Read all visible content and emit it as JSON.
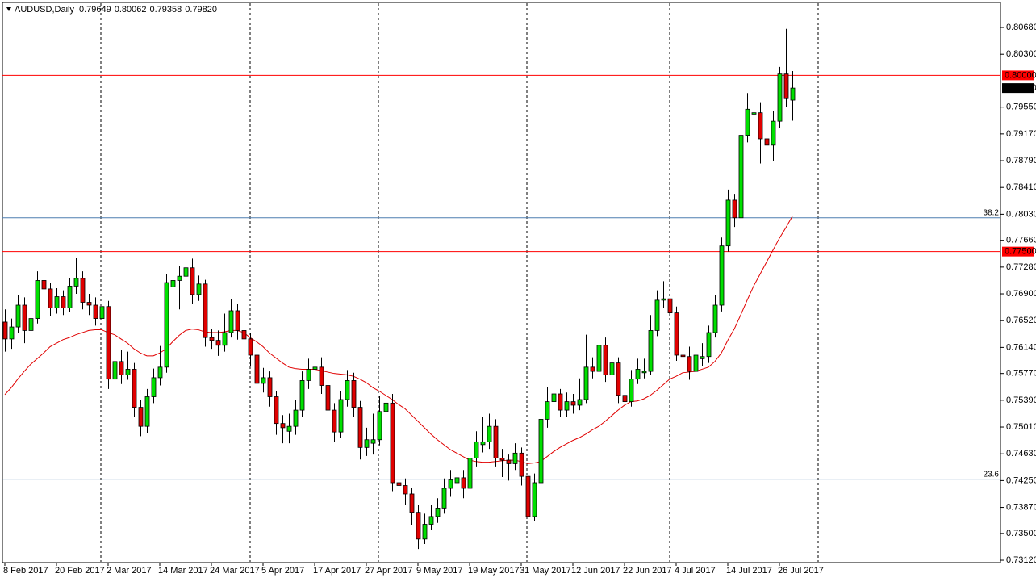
{
  "chart_data": {
    "type": "candlestick",
    "symbol": "AUDUSD,Daily",
    "info_labels": [
      "0.79649",
      "0.80062",
      "0.79358",
      "0.79820"
    ],
    "categories": [
      "8 Feb 2017",
      null,
      null,
      null,
      null,
      null,
      null,
      null,
      "20 Feb 2017",
      null,
      null,
      null,
      null,
      null,
      null,
      null,
      "2 Mar 2017",
      null,
      null,
      null,
      null,
      null,
      null,
      null,
      "14 Mar 2017",
      null,
      null,
      null,
      null,
      null,
      null,
      null,
      "24 Mar 2017",
      null,
      null,
      null,
      null,
      null,
      null,
      null,
      "5 Apr 2017",
      null,
      null,
      null,
      null,
      null,
      null,
      null,
      "17 Apr 2017",
      null,
      null,
      null,
      null,
      null,
      null,
      null,
      "27 Apr 2017",
      null,
      null,
      null,
      null,
      null,
      null,
      null,
      "9 May 2017",
      null,
      null,
      null,
      null,
      null,
      null,
      null,
      "19 May 2017",
      null,
      null,
      null,
      null,
      null,
      null,
      null,
      "31 May 2017",
      null,
      null,
      null,
      null,
      null,
      null,
      null,
      "12 Jun 2017",
      null,
      null,
      null,
      null,
      null,
      null,
      null,
      "22 Jun 2017",
      null,
      null,
      null,
      null,
      null,
      null,
      null,
      "4 Jul 2017",
      null,
      null,
      null,
      null,
      null,
      null,
      null,
      "14 Jul 2017",
      null,
      null,
      null,
      null,
      null,
      null,
      null,
      "26 Jul 2017",
      null,
      null
    ],
    "ohlc": [
      [
        0.765,
        0.7668,
        0.7608,
        0.7626
      ],
      [
        0.7626,
        0.7655,
        0.7612,
        0.7643
      ],
      [
        0.7643,
        0.7688,
        0.7635,
        0.7674
      ],
      [
        0.7674,
        0.7685,
        0.762,
        0.7638
      ],
      [
        0.7638,
        0.7668,
        0.763,
        0.7655
      ],
      [
        0.7655,
        0.7722,
        0.7648,
        0.7709
      ],
      [
        0.7709,
        0.7731,
        0.7685,
        0.7697
      ],
      [
        0.7697,
        0.7705,
        0.7658,
        0.767
      ],
      [
        0.767,
        0.7698,
        0.7662,
        0.7686
      ],
      [
        0.7686,
        0.7695,
        0.766,
        0.767
      ],
      [
        0.767,
        0.7712,
        0.7664,
        0.7701
      ],
      [
        0.7701,
        0.7741,
        0.769,
        0.7712
      ],
      [
        0.7712,
        0.7722,
        0.7668,
        0.7678
      ],
      [
        0.7678,
        0.769,
        0.766,
        0.7674
      ],
      [
        0.7674,
        0.7685,
        0.7645,
        0.7655
      ],
      [
        0.7655,
        0.769,
        0.7648,
        0.7672
      ],
      [
        0.7672,
        0.768,
        0.7555,
        0.7569
      ],
      [
        0.7569,
        0.7612,
        0.7545,
        0.7594
      ],
      [
        0.7594,
        0.761,
        0.7562,
        0.7575
      ],
      [
        0.7575,
        0.7608,
        0.7568,
        0.7583
      ],
      [
        0.7583,
        0.7592,
        0.7515,
        0.7529
      ],
      [
        0.7529,
        0.754,
        0.7488,
        0.7502
      ],
      [
        0.7502,
        0.7555,
        0.7492,
        0.7544
      ],
      [
        0.7544,
        0.7584,
        0.7535,
        0.7571
      ],
      [
        0.7571,
        0.7616,
        0.756,
        0.7586
      ],
      [
        0.7586,
        0.7718,
        0.7578,
        0.7706
      ],
      [
        0.77,
        0.7722,
        0.769,
        0.7709
      ],
      [
        0.7709,
        0.773,
        0.7668,
        0.7715
      ],
      [
        0.7715,
        0.7748,
        0.77,
        0.7727
      ],
      [
        0.7727,
        0.774,
        0.7676,
        0.7689
      ],
      [
        0.7689,
        0.7716,
        0.768,
        0.7704
      ],
      [
        0.7704,
        0.771,
        0.7615,
        0.7628
      ],
      [
        0.7628,
        0.764,
        0.7612,
        0.7624
      ],
      [
        0.7624,
        0.7638,
        0.7602,
        0.7617
      ],
      [
        0.7617,
        0.7662,
        0.7608,
        0.7635
      ],
      [
        0.7635,
        0.7682,
        0.7628,
        0.7666
      ],
      [
        0.7666,
        0.7676,
        0.7625,
        0.7638
      ],
      [
        0.7638,
        0.765,
        0.7612,
        0.7626
      ],
      [
        0.7626,
        0.7635,
        0.7588,
        0.7603
      ],
      [
        0.7603,
        0.7612,
        0.7548,
        0.7563
      ],
      [
        0.7563,
        0.7585,
        0.755,
        0.7571
      ],
      [
        0.7571,
        0.758,
        0.753,
        0.7544
      ],
      [
        0.7544,
        0.7552,
        0.749,
        0.7506
      ],
      [
        0.7506,
        0.7518,
        0.7478,
        0.75
      ],
      [
        0.7495,
        0.752,
        0.7478,
        0.7502
      ],
      [
        0.7502,
        0.754,
        0.749,
        0.7525
      ],
      [
        0.7525,
        0.758,
        0.7515,
        0.7567
      ],
      [
        0.7567,
        0.7598,
        0.7555,
        0.7583
      ],
      [
        0.7583,
        0.7612,
        0.757,
        0.7586
      ],
      [
        0.7586,
        0.76,
        0.7548,
        0.756
      ],
      [
        0.756,
        0.757,
        0.751,
        0.7525
      ],
      [
        0.7525,
        0.7535,
        0.748,
        0.7494
      ],
      [
        0.7494,
        0.7552,
        0.7485,
        0.754
      ],
      [
        0.754,
        0.7582,
        0.753,
        0.7567
      ],
      [
        0.7567,
        0.7578,
        0.7515,
        0.7529
      ],
      [
        0.7529,
        0.7538,
        0.7455,
        0.7472
      ],
      [
        0.7472,
        0.75,
        0.746,
        0.7483
      ],
      [
        0.7478,
        0.752,
        0.7462,
        0.7483
      ],
      [
        0.7483,
        0.7545,
        0.7475,
        0.7523
      ],
      [
        0.7523,
        0.756,
        0.7512,
        0.7535
      ],
      [
        0.7535,
        0.7548,
        0.741,
        0.7422
      ],
      [
        0.7422,
        0.7435,
        0.7395,
        0.7418
      ],
      [
        0.7418,
        0.7428,
        0.739,
        0.7406
      ],
      [
        0.7406,
        0.7415,
        0.7362,
        0.738
      ],
      [
        0.738,
        0.739,
        0.7328,
        0.7342
      ],
      [
        0.7342,
        0.7378,
        0.7335,
        0.7363
      ],
      [
        0.7363,
        0.739,
        0.7355,
        0.7374
      ],
      [
        0.7374,
        0.74,
        0.7365,
        0.7386
      ],
      [
        0.7386,
        0.7428,
        0.7378,
        0.7414
      ],
      [
        0.7414,
        0.744,
        0.7402,
        0.7426
      ],
      [
        0.7422,
        0.744,
        0.741,
        0.7429
      ],
      [
        0.7429,
        0.744,
        0.74,
        0.7414
      ],
      [
        0.7414,
        0.7475,
        0.7405,
        0.7457
      ],
      [
        0.7457,
        0.7495,
        0.7445,
        0.748
      ],
      [
        0.7476,
        0.7515,
        0.7465,
        0.748
      ],
      [
        0.748,
        0.752,
        0.747,
        0.7502
      ],
      [
        0.7502,
        0.7512,
        0.7445,
        0.7457
      ],
      [
        0.7457,
        0.747,
        0.743,
        0.7454
      ],
      [
        0.7454,
        0.7462,
        0.7425,
        0.7449
      ],
      [
        0.7449,
        0.7478,
        0.744,
        0.7464
      ],
      [
        0.7464,
        0.7472,
        0.7418,
        0.7431
      ],
      [
        0.7431,
        0.744,
        0.7365,
        0.7374
      ],
      [
        0.7374,
        0.7435,
        0.7368,
        0.7422
      ],
      [
        0.7422,
        0.7525,
        0.7415,
        0.7512
      ],
      [
        0.7512,
        0.7558,
        0.75,
        0.7537
      ],
      [
        0.7537,
        0.7565,
        0.7525,
        0.7548
      ],
      [
        0.7548,
        0.7555,
        0.7515,
        0.7525
      ],
      [
        0.7525,
        0.755,
        0.7515,
        0.7537
      ],
      [
        0.7537,
        0.7548,
        0.752,
        0.7532
      ],
      [
        0.7532,
        0.757,
        0.7525,
        0.754
      ],
      [
        0.754,
        0.7632,
        0.7535,
        0.7586
      ],
      [
        0.7586,
        0.76,
        0.757,
        0.758
      ],
      [
        0.758,
        0.7635,
        0.7572,
        0.7617
      ],
      [
        0.7617,
        0.7628,
        0.7565,
        0.7575
      ],
      [
        0.7575,
        0.7618,
        0.7568,
        0.7592
      ],
      [
        0.7592,
        0.76,
        0.7535,
        0.7546
      ],
      [
        0.7546,
        0.756,
        0.7522,
        0.7537
      ],
      [
        0.7537,
        0.7582,
        0.753,
        0.7569
      ],
      [
        0.7569,
        0.7598,
        0.7562,
        0.7583
      ],
      [
        0.7578,
        0.7598,
        0.757,
        0.758
      ],
      [
        0.758,
        0.766,
        0.7575,
        0.7638
      ],
      [
        0.7638,
        0.7695,
        0.763,
        0.7681
      ],
      [
        0.7681,
        0.7708,
        0.767,
        0.7683
      ],
      [
        0.7683,
        0.7698,
        0.765,
        0.7663
      ],
      [
        0.7663,
        0.7672,
        0.7595,
        0.7603
      ],
      [
        0.7603,
        0.7625,
        0.7585,
        0.7601
      ],
      [
        0.7601,
        0.7615,
        0.7568,
        0.758
      ],
      [
        0.758,
        0.7625,
        0.7572,
        0.7603
      ],
      [
        0.7598,
        0.762,
        0.7588,
        0.7601
      ],
      [
        0.7601,
        0.7645,
        0.7592,
        0.7635
      ],
      [
        0.7635,
        0.7688,
        0.7628,
        0.7674
      ],
      [
        0.7674,
        0.777,
        0.7665,
        0.7758
      ],
      [
        0.7758,
        0.7838,
        0.775,
        0.7823
      ],
      [
        0.7823,
        0.7832,
        0.7785,
        0.7798
      ],
      [
        0.7798,
        0.793,
        0.779,
        0.7915
      ],
      [
        0.7915,
        0.7975,
        0.7905,
        0.7952
      ],
      [
        0.7945,
        0.7968,
        0.7925,
        0.7947
      ],
      [
        0.7947,
        0.7962,
        0.7875,
        0.791
      ],
      [
        0.791,
        0.7935,
        0.788,
        0.7901
      ],
      [
        0.7901,
        0.795,
        0.7878,
        0.7935
      ],
      [
        0.7935,
        0.8012,
        0.7925,
        0.8002
      ],
      [
        0.8002,
        0.8066,
        0.7955,
        0.7967
      ],
      [
        0.79649,
        0.80062,
        0.79358,
        0.7982
      ]
    ],
    "ma": [
      0.7547,
      0.7557,
      0.7569,
      0.758,
      0.759,
      0.7598,
      0.7606,
      0.7615,
      0.762,
      0.7625,
      0.7628,
      0.7632,
      0.7635,
      0.7638,
      0.7639,
      0.7639,
      0.7635,
      0.7632,
      0.7626,
      0.762,
      0.7612,
      0.7606,
      0.7602,
      0.7602,
      0.7606,
      0.7612,
      0.7622,
      0.7631,
      0.7638,
      0.764,
      0.7639,
      0.7636,
      0.7635,
      0.7635,
      0.7636,
      0.7638,
      0.7638,
      0.7635,
      0.7628,
      0.7622,
      0.7615,
      0.7606,
      0.7599,
      0.7592,
      0.7586,
      0.7584,
      0.7583,
      0.7583,
      0.7583,
      0.7581,
      0.7579,
      0.7577,
      0.7576,
      0.7575,
      0.7573,
      0.7569,
      0.7564,
      0.7557,
      0.7552,
      0.7546,
      0.754,
      0.7533,
      0.7527,
      0.7518,
      0.7509,
      0.75,
      0.7491,
      0.7483,
      0.7476,
      0.7469,
      0.7464,
      0.7459,
      0.7454,
      0.7452,
      0.7451,
      0.7451,
      0.7452,
      0.7453,
      0.7454,
      0.7454,
      0.7452,
      0.7449,
      0.745,
      0.7452,
      0.7459,
      0.7466,
      0.7472,
      0.7477,
      0.7482,
      0.7486,
      0.7491,
      0.7497,
      0.7502,
      0.7509,
      0.7517,
      0.7525,
      0.7532,
      0.7537,
      0.7538,
      0.7541,
      0.7546,
      0.7553,
      0.7561,
      0.7569,
      0.7573,
      0.7578,
      0.7579,
      0.758,
      0.7583,
      0.7586,
      0.7594,
      0.7606,
      0.7624,
      0.764,
      0.766,
      0.7681,
      0.7701,
      0.7718,
      0.7735,
      0.7752,
      0.7769,
      0.7784,
      0.78
    ],
    "ylim": [
      0.73086,
      0.81024
    ],
    "yticks": [
      {
        "value": 0.8068,
        "label": "0.80680"
      },
      {
        "value": 0.803,
        "label": "0.80300"
      },
      {
        "value": 0.7955,
        "label": "0.79550"
      },
      {
        "value": 0.7917,
        "label": "0.79170"
      },
      {
        "value": 0.7879,
        "label": "0.78790"
      },
      {
        "value": 0.7841,
        "label": "0.78410"
      },
      {
        "value": 0.7803,
        "label": "0.78030"
      },
      {
        "value": 0.7766,
        "label": "0.77660"
      },
      {
        "value": 0.7728,
        "label": "0.77280"
      },
      {
        "value": 0.769,
        "label": "0.76900"
      },
      {
        "value": 0.7652,
        "label": "0.76520"
      },
      {
        "value": 0.7614,
        "label": "0.76140"
      },
      {
        "value": 0.7577,
        "label": "0.75770"
      },
      {
        "value": 0.7539,
        "label": "0.75390"
      },
      {
        "value": 0.7501,
        "label": "0.75010"
      },
      {
        "value": 0.7463,
        "label": "0.74630"
      },
      {
        "value": 0.7425,
        "label": "0.74250"
      },
      {
        "value": 0.7387,
        "label": "0.73870"
      },
      {
        "value": 0.735,
        "label": "0.73500"
      },
      {
        "value": 0.7312,
        "label": "0.73120"
      }
    ],
    "levels": [
      {
        "value": 0.8,
        "label": "0.80000"
      },
      {
        "value": 0.775,
        "label": "0.77500"
      }
    ],
    "fib_levels": [
      {
        "value": 0.7798,
        "label": "38.2"
      },
      {
        "value": 0.7427,
        "label": "23.6"
      }
    ],
    "last_price": {
      "value": 0.7982,
      "label": "0.79820"
    },
    "bull_color": "#00e000",
    "bear_color": "#e00000",
    "ma_color": "#e00000",
    "level_color": "#ff0000",
    "fib_color": "#4f7fb0"
  }
}
